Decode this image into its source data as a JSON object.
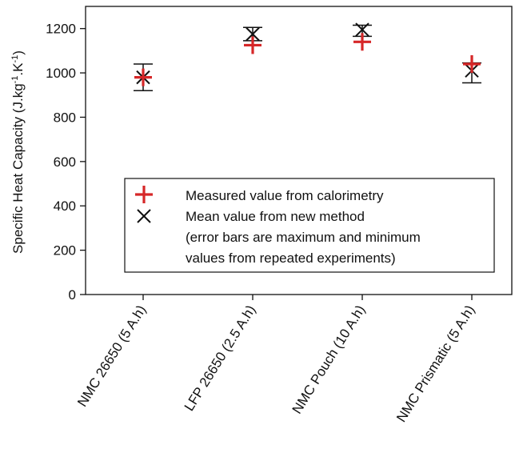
{
  "chart_data": {
    "type": "scatter",
    "ylabel": "Specific Heat Capacity (J.kg",
    "ylabel_exp1": "-1",
    "ylabel_mid": ".K",
    "ylabel_exp2": "-1",
    "ylabel_end": ")",
    "ylim": [
      0,
      1300
    ],
    "yticks": [
      0,
      200,
      400,
      600,
      800,
      1000,
      1200
    ],
    "categories": [
      "NMC 26650 (5 A.h)",
      "LFP 26650 (2.5 A.h)",
      "NMC Pouch (10 A.h)",
      "NMC Prismatic (5 A.h)"
    ],
    "series": [
      {
        "name": "Measured value from calorimetry",
        "marker": "plus",
        "color": "#d62728",
        "values": [
          980,
          1125,
          1140,
          1040
        ]
      },
      {
        "name": "Mean value from new method",
        "marker": "x",
        "color": "#111111",
        "values": [
          980,
          1175,
          1195,
          1010
        ],
        "err_min": [
          920,
          1145,
          1165,
          955
        ],
        "err_max": [
          1040,
          1205,
          1215,
          1045
        ]
      }
    ],
    "legend": {
      "position": "center-lower",
      "note_line1": "(error bars are maximum and minimum",
      "note_line2": "values from repeated experiments)"
    },
    "grid": false
  }
}
